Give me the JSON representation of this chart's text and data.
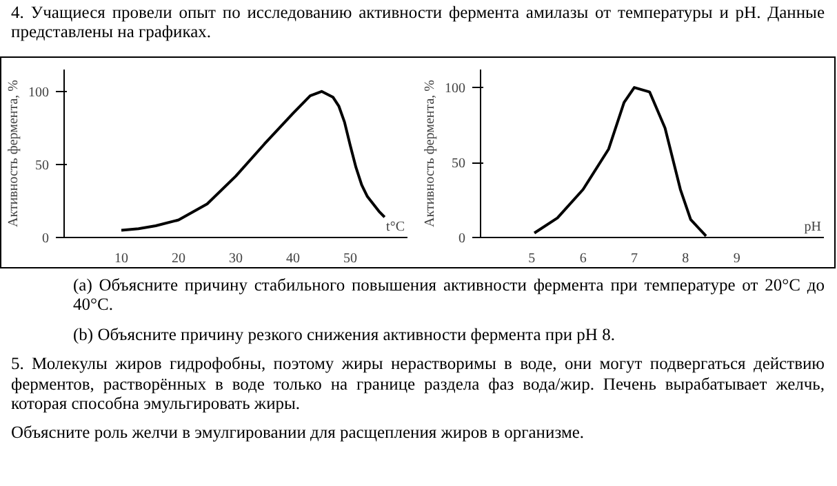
{
  "chart_data": [
    {
      "type": "line",
      "title": "4. Учащиеся провели опыт по исследованию активности фермента амилазы от температуры и pH. Данные представлены на графиках.",
      "xlabel": "t°C",
      "ylabel": "Активность фермента, %",
      "xlim": [
        0,
        60
      ],
      "xticks": [
        10,
        20,
        30,
        40,
        50
      ],
      "ylim": [
        0,
        115
      ],
      "yticks": [
        0,
        50,
        100
      ],
      "x": [
        10,
        13,
        16,
        20,
        25,
        30,
        35,
        40,
        43,
        45,
        47,
        48,
        49,
        50,
        51,
        52,
        53,
        55,
        56
      ],
      "series": [
        {
          "color": "#000000",
          "values": [
            5,
            6,
            8,
            12,
            23,
            42,
            64,
            85,
            97,
            100,
            96,
            90,
            79,
            63,
            48,
            36,
            28,
            18,
            14
          ]
        }
      ]
    },
    {
      "type": "line",
      "xlabel": "pH",
      "ylabel": "Активность фермента, %",
      "xlim": [
        4,
        10.7
      ],
      "xticks": [
        5,
        6,
        7,
        8,
        9
      ],
      "ylim": [
        0,
        112
      ],
      "yticks": [
        0,
        50,
        100
      ],
      "x": [
        5.05,
        5.5,
        6,
        6.5,
        6.8,
        7,
        7.3,
        7.6,
        7.9,
        8.1,
        8.4
      ],
      "series": [
        {
          "color": "#000000",
          "values": [
            3,
            13,
            32,
            59,
            90,
            100,
            97,
            73,
            32,
            12,
            1
          ]
        }
      ],
      "annotations": [
        "(a) Объясните причину стабильного повышения активности фермента при температуре от 20°C до 40°C.",
        "(b) Объясните причину резкого снижения активности фермента при pH 8.",
        "5. Молекулы жиров гидрофобны, поэтому жиры нерастворимы в воде, они могут подвергаться действию ферментов, растворённых в воде только на границе раздела фаз вода/жир. Печень вырабатывает желчь, которая способна эмульгировать жиры.",
        "Объясните роль желчи в эмулгировании для расщепления жиров в организме."
      ]
    }
  ]
}
